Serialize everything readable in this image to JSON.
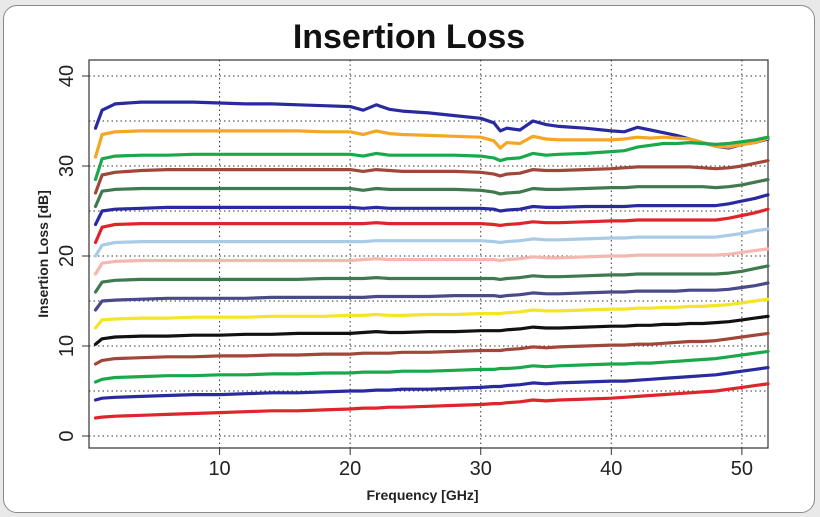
{
  "chart_data": {
    "type": "line",
    "title": "Insertion Loss",
    "xlabel": "Frequency [GHz]",
    "ylabel": "Insertion Loss [dB]",
    "xlim": [
      0,
      52
    ],
    "ylim": [
      0,
      40
    ],
    "xticks": [
      10,
      20,
      30,
      40,
      50
    ],
    "yticks": [
      0,
      10,
      20,
      30,
      40
    ],
    "grid": true,
    "x": [
      0.5,
      1,
      2,
      4,
      6,
      8,
      10,
      12,
      14,
      16,
      18,
      20,
      21,
      22,
      23,
      24,
      26,
      28,
      30,
      31,
      31.5,
      32,
      33,
      34,
      35,
      36,
      38,
      40,
      41,
      42,
      43,
      44,
      45,
      46,
      47,
      48,
      49,
      50,
      51,
      52
    ],
    "series": [
      {
        "color": "#2a2aa0",
        "values": [
          34.2,
          36.2,
          36.9,
          37.1,
          37.1,
          37.1,
          37.0,
          36.9,
          36.9,
          36.8,
          36.7,
          36.6,
          36.2,
          36.8,
          36.3,
          36.1,
          35.9,
          35.6,
          35.3,
          34.8,
          33.9,
          34.2,
          34.0,
          35.0,
          34.6,
          34.4,
          34.2,
          33.9,
          33.8,
          34.3,
          34.0,
          33.7,
          33.4,
          33.0,
          32.6,
          32.2,
          32.0,
          32.4,
          32.6,
          33.0
        ]
      },
      {
        "color": "#f5a623",
        "values": [
          31.0,
          33.5,
          33.8,
          33.9,
          33.9,
          33.9,
          33.9,
          33.9,
          33.9,
          33.9,
          33.8,
          33.8,
          33.5,
          33.9,
          33.6,
          33.5,
          33.4,
          33.3,
          33.2,
          32.8,
          32.0,
          32.6,
          32.5,
          33.3,
          33.0,
          32.9,
          32.9,
          32.9,
          33.0,
          33.2,
          33.1,
          33.2,
          33.1,
          33.0,
          32.6,
          32.2,
          32.1,
          32.4,
          32.6,
          33.1
        ]
      },
      {
        "color": "#1aa84a",
        "values": [
          28.5,
          30.8,
          31.1,
          31.2,
          31.2,
          31.3,
          31.3,
          31.3,
          31.3,
          31.3,
          31.3,
          31.3,
          31.1,
          31.4,
          31.2,
          31.2,
          31.2,
          31.2,
          31.1,
          30.9,
          30.6,
          30.8,
          30.9,
          31.4,
          31.2,
          31.3,
          31.4,
          31.6,
          31.7,
          32.1,
          32.3,
          32.5,
          32.5,
          32.6,
          32.5,
          32.4,
          32.5,
          32.7,
          32.9,
          33.2
        ]
      },
      {
        "color": "#a0473a",
        "values": [
          27.0,
          29.0,
          29.3,
          29.5,
          29.6,
          29.6,
          29.6,
          29.6,
          29.6,
          29.6,
          29.6,
          29.6,
          29.4,
          29.6,
          29.5,
          29.4,
          29.4,
          29.4,
          29.3,
          29.1,
          28.9,
          29.1,
          29.2,
          29.6,
          29.5,
          29.5,
          29.6,
          29.7,
          29.8,
          29.9,
          29.9,
          29.9,
          29.9,
          29.9,
          29.8,
          29.7,
          29.8,
          30.0,
          30.3,
          30.6
        ]
      },
      {
        "color": "#3f7a4f",
        "values": [
          25.5,
          27.2,
          27.4,
          27.5,
          27.5,
          27.5,
          27.5,
          27.5,
          27.5,
          27.5,
          27.5,
          27.5,
          27.3,
          27.5,
          27.4,
          27.4,
          27.4,
          27.4,
          27.3,
          27.1,
          26.9,
          27.0,
          27.1,
          27.5,
          27.4,
          27.4,
          27.5,
          27.6,
          27.6,
          27.7,
          27.7,
          27.7,
          27.7,
          27.7,
          27.7,
          27.6,
          27.7,
          27.9,
          28.2,
          28.5
        ]
      },
      {
        "color": "#2a2aa0",
        "values": [
          23.5,
          25.0,
          25.2,
          25.3,
          25.4,
          25.4,
          25.4,
          25.4,
          25.4,
          25.4,
          25.4,
          25.4,
          25.3,
          25.4,
          25.3,
          25.3,
          25.3,
          25.3,
          25.3,
          25.2,
          25.0,
          25.1,
          25.2,
          25.5,
          25.4,
          25.4,
          25.5,
          25.5,
          25.5,
          25.6,
          25.6,
          25.6,
          25.6,
          25.6,
          25.6,
          25.6,
          25.8,
          26.1,
          26.4,
          26.8
        ]
      },
      {
        "color": "#e0242b",
        "values": [
          21.5,
          23.2,
          23.5,
          23.6,
          23.6,
          23.6,
          23.6,
          23.6,
          23.6,
          23.6,
          23.6,
          23.6,
          23.6,
          23.7,
          23.6,
          23.6,
          23.6,
          23.6,
          23.6,
          23.5,
          23.4,
          23.5,
          23.6,
          23.8,
          23.7,
          23.7,
          23.8,
          23.9,
          23.9,
          24.0,
          24.0,
          24.0,
          24.0,
          24.0,
          24.0,
          24.0,
          24.2,
          24.5,
          24.8,
          25.2
        ]
      },
      {
        "color": "#a9cbe6",
        "values": [
          20.0,
          21.2,
          21.5,
          21.6,
          21.6,
          21.6,
          21.6,
          21.6,
          21.6,
          21.6,
          21.6,
          21.6,
          21.6,
          21.7,
          21.7,
          21.7,
          21.7,
          21.7,
          21.7,
          21.6,
          21.5,
          21.6,
          21.7,
          21.9,
          21.8,
          21.8,
          21.9,
          22.0,
          22.0,
          22.1,
          22.1,
          22.1,
          22.1,
          22.1,
          22.1,
          22.1,
          22.3,
          22.5,
          22.8,
          23.0
        ]
      },
      {
        "color": "#f4b8b0",
        "values": [
          18.0,
          19.2,
          19.4,
          19.5,
          19.5,
          19.5,
          19.5,
          19.5,
          19.5,
          19.5,
          19.5,
          19.5,
          19.6,
          19.7,
          19.6,
          19.6,
          19.6,
          19.6,
          19.6,
          19.6,
          19.5,
          19.6,
          19.7,
          19.9,
          19.8,
          19.8,
          19.9,
          20.0,
          20.0,
          20.1,
          20.1,
          20.1,
          20.1,
          20.1,
          20.1,
          20.1,
          20.2,
          20.4,
          20.6,
          20.8
        ]
      },
      {
        "color": "#3f7a4f",
        "values": [
          16.0,
          17.1,
          17.3,
          17.4,
          17.4,
          17.4,
          17.4,
          17.4,
          17.4,
          17.4,
          17.5,
          17.5,
          17.5,
          17.6,
          17.5,
          17.5,
          17.5,
          17.5,
          17.5,
          17.5,
          17.4,
          17.5,
          17.6,
          17.8,
          17.7,
          17.7,
          17.8,
          17.9,
          17.9,
          18.0,
          18.0,
          18.0,
          18.0,
          18.0,
          18.0,
          18.0,
          18.1,
          18.3,
          18.6,
          18.9
        ]
      },
      {
        "color": "#4a4a8a",
        "values": [
          14.0,
          15.0,
          15.1,
          15.2,
          15.3,
          15.3,
          15.3,
          15.3,
          15.4,
          15.4,
          15.4,
          15.4,
          15.4,
          15.5,
          15.5,
          15.5,
          15.5,
          15.6,
          15.6,
          15.6,
          15.5,
          15.6,
          15.7,
          15.9,
          15.8,
          15.8,
          15.9,
          16.0,
          16.0,
          16.1,
          16.1,
          16.1,
          16.1,
          16.2,
          16.2,
          16.2,
          16.3,
          16.5,
          16.7,
          17.0
        ]
      },
      {
        "color": "#f2e626",
        "values": [
          12.0,
          12.9,
          13.0,
          13.1,
          13.1,
          13.2,
          13.2,
          13.2,
          13.3,
          13.3,
          13.3,
          13.4,
          13.4,
          13.5,
          13.4,
          13.4,
          13.5,
          13.5,
          13.6,
          13.6,
          13.6,
          13.7,
          13.8,
          14.0,
          13.9,
          13.9,
          14.0,
          14.1,
          14.1,
          14.2,
          14.2,
          14.3,
          14.3,
          14.4,
          14.4,
          14.5,
          14.6,
          14.8,
          15.0,
          15.2
        ]
      },
      {
        "color": "#111111",
        "values": [
          10.2,
          10.8,
          11.0,
          11.1,
          11.1,
          11.2,
          11.2,
          11.3,
          11.3,
          11.4,
          11.4,
          11.4,
          11.5,
          11.6,
          11.5,
          11.5,
          11.6,
          11.6,
          11.7,
          11.7,
          11.7,
          11.8,
          11.9,
          12.1,
          12.0,
          12.0,
          12.1,
          12.2,
          12.2,
          12.3,
          12.3,
          12.4,
          12.4,
          12.5,
          12.5,
          12.6,
          12.7,
          12.9,
          13.1,
          13.3
        ]
      },
      {
        "color": "#a0473a",
        "values": [
          8.0,
          8.4,
          8.6,
          8.7,
          8.8,
          8.8,
          8.9,
          8.9,
          9.0,
          9.0,
          9.1,
          9.1,
          9.2,
          9.2,
          9.2,
          9.3,
          9.3,
          9.4,
          9.5,
          9.5,
          9.5,
          9.6,
          9.7,
          9.9,
          9.8,
          9.9,
          10.0,
          10.1,
          10.1,
          10.2,
          10.2,
          10.3,
          10.4,
          10.5,
          10.5,
          10.6,
          10.8,
          11.0,
          11.2,
          11.4
        ]
      },
      {
        "color": "#1aa84a",
        "values": [
          6.0,
          6.3,
          6.5,
          6.6,
          6.7,
          6.7,
          6.8,
          6.8,
          6.9,
          6.9,
          7.0,
          7.0,
          7.1,
          7.1,
          7.1,
          7.2,
          7.2,
          7.3,
          7.4,
          7.4,
          7.5,
          7.5,
          7.6,
          7.8,
          7.7,
          7.8,
          7.9,
          8.0,
          8.0,
          8.1,
          8.1,
          8.2,
          8.3,
          8.4,
          8.5,
          8.6,
          8.8,
          9.0,
          9.2,
          9.4
        ]
      },
      {
        "color": "#2a2aa0",
        "values": [
          4.0,
          4.2,
          4.3,
          4.4,
          4.5,
          4.6,
          4.6,
          4.7,
          4.8,
          4.8,
          4.9,
          5.0,
          5.0,
          5.1,
          5.1,
          5.2,
          5.2,
          5.3,
          5.4,
          5.5,
          5.5,
          5.6,
          5.7,
          5.9,
          5.8,
          5.9,
          6.0,
          6.1,
          6.1,
          6.2,
          6.3,
          6.4,
          6.5,
          6.6,
          6.7,
          6.8,
          7.0,
          7.2,
          7.4,
          7.6
        ]
      },
      {
        "color": "#e0242b",
        "values": [
          2.0,
          2.1,
          2.2,
          2.3,
          2.4,
          2.5,
          2.6,
          2.7,
          2.8,
          2.8,
          2.9,
          3.0,
          3.1,
          3.1,
          3.2,
          3.2,
          3.3,
          3.4,
          3.5,
          3.6,
          3.6,
          3.7,
          3.8,
          4.0,
          3.9,
          4.0,
          4.1,
          4.2,
          4.3,
          4.4,
          4.5,
          4.6,
          4.7,
          4.8,
          4.9,
          5.0,
          5.2,
          5.4,
          5.6,
          5.8
        ]
      }
    ]
  }
}
